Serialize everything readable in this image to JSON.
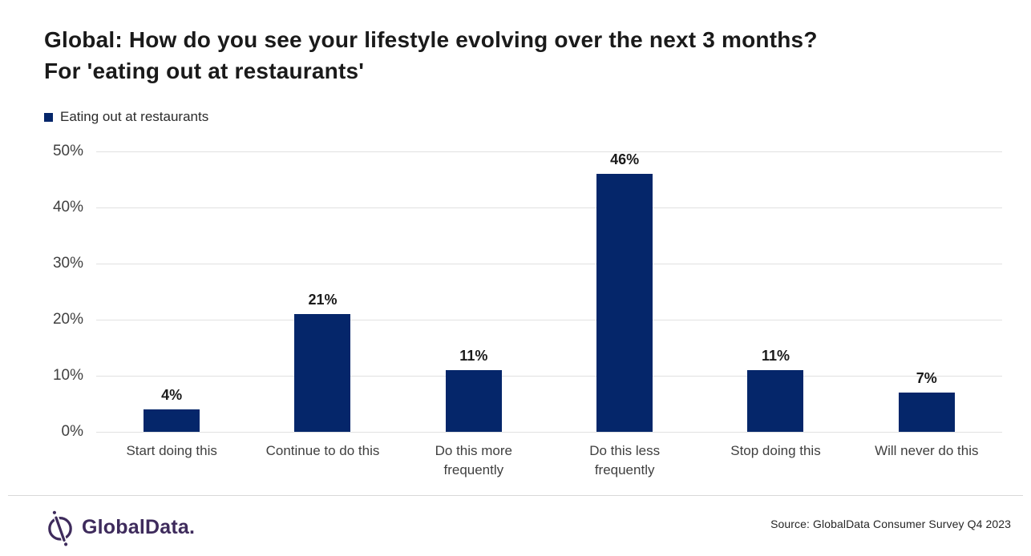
{
  "title": {
    "line1": "Global: How do you see your lifestyle evolving over the next 3 months?",
    "line2": "For 'eating out at restaurants'"
  },
  "legend": {
    "label": "Eating out at restaurants"
  },
  "chart_data": {
    "type": "bar",
    "title": "Global: How do you see your lifestyle evolving over the next 3 months? For 'eating out at restaurants'",
    "series_name": "Eating out at restaurants",
    "categories": [
      "Start doing this",
      "Continue to do this",
      "Do this more\nfrequently",
      "Do this less\nfrequently",
      "Stop doing this",
      "Will never do this"
    ],
    "values": [
      4,
      21,
      11,
      46,
      11,
      7
    ],
    "value_labels": [
      "4%",
      "21%",
      "11%",
      "46%",
      "11%",
      "7%"
    ],
    "xlabel": "",
    "ylabel": "",
    "ylim": [
      0,
      50
    ],
    "yticks": [
      "0%",
      "10%",
      "20%",
      "30%",
      "40%",
      "50%"
    ],
    "grid": "horizontal",
    "legend_position": "top-left",
    "bar_color": "#05266a",
    "gridline_color": "#e1e1e1"
  },
  "footer": {
    "logo_text": "GlobalData.",
    "logo_color": "#3e2b5c",
    "source": "Source: GlobalData Consumer Survey Q4 2023"
  }
}
